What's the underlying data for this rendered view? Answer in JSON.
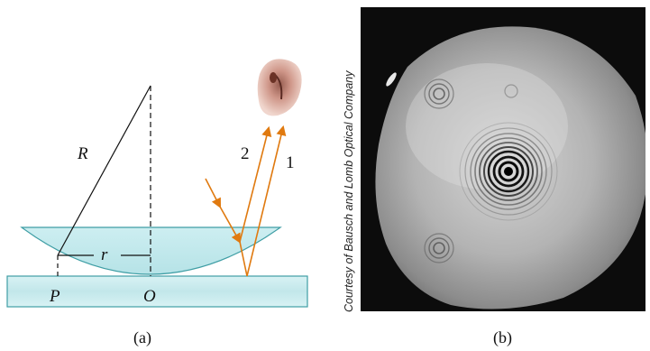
{
  "panel_a": {
    "caption": "(a)",
    "labels": {
      "radius_big": "R",
      "radius_small": "r",
      "point_p": "P",
      "point_o": "O",
      "ray_2": "2",
      "ray_1": "1"
    },
    "colors": {
      "lens_fill": "#cfeef0",
      "glass_stroke": "#3f9ea5",
      "ray": "#e07a10",
      "line": "#111111"
    },
    "icon": "eye-icon"
  },
  "panel_b": {
    "caption": "(b)",
    "credit": "Courtesy of Bausch and Lomb Optical Company",
    "icon": "newton-rings-photo"
  }
}
